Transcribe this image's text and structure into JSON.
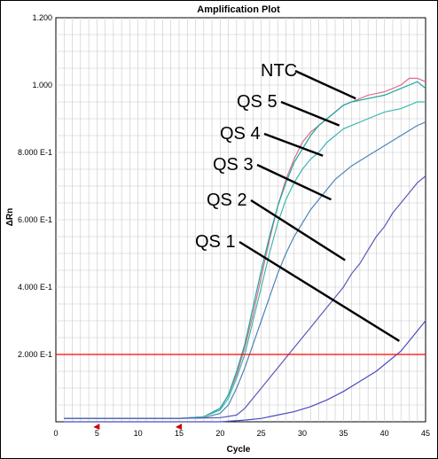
{
  "chart_data": {
    "type": "line",
    "title": "Amplification Plot",
    "xlabel": "Cycle",
    "ylabel": "ΔRn",
    "xlim": [
      0,
      45
    ],
    "ylim": [
      0,
      1.2
    ],
    "x_ticks": [
      0,
      5,
      10,
      15,
      20,
      25,
      30,
      35,
      40,
      45
    ],
    "y_ticks": [
      {
        "value": 0.2,
        "label": "2.000 E-1"
      },
      {
        "value": 0.4,
        "label": "4.000 E-1"
      },
      {
        "value": 0.6,
        "label": "6.000 E-1"
      },
      {
        "value": 0.8,
        "label": "8.000 E-1"
      },
      {
        "value": 1.0,
        "label": "1.000"
      },
      {
        "value": 1.2,
        "label": "1.200"
      }
    ],
    "grid": true,
    "threshold": {
      "value": 0.2,
      "color": "#ff0000"
    },
    "baseline_markers": [
      5,
      15
    ],
    "series": [
      {
        "name": "NTC",
        "color": "#e06a8a",
        "points": [
          [
            1,
            0.01
          ],
          [
            5,
            0.01
          ],
          [
            10,
            0.01
          ],
          [
            15,
            0.01
          ],
          [
            18,
            0.015
          ],
          [
            20,
            0.04
          ],
          [
            21,
            0.08
          ],
          [
            22,
            0.14
          ],
          [
            23,
            0.22
          ],
          [
            24,
            0.32
          ],
          [
            25,
            0.43
          ],
          [
            26,
            0.54
          ],
          [
            27,
            0.64
          ],
          [
            28,
            0.72
          ],
          [
            29,
            0.78
          ],
          [
            30,
            0.83
          ],
          [
            31,
            0.86
          ],
          [
            32,
            0.88
          ],
          [
            33,
            0.9
          ],
          [
            34,
            0.92
          ],
          [
            35,
            0.94
          ],
          [
            36,
            0.95
          ],
          [
            38,
            0.97
          ],
          [
            40,
            0.98
          ],
          [
            42,
            1.0
          ],
          [
            43,
            1.02
          ],
          [
            44,
            1.02
          ],
          [
            45,
            1.01
          ]
        ]
      },
      {
        "name": "QS 5",
        "color": "#19a8a0",
        "points": [
          [
            1,
            0.01
          ],
          [
            5,
            0.01
          ],
          [
            10,
            0.01
          ],
          [
            15,
            0.01
          ],
          [
            18,
            0.015
          ],
          [
            20,
            0.04
          ],
          [
            21,
            0.08
          ],
          [
            22,
            0.15
          ],
          [
            23,
            0.23
          ],
          [
            24,
            0.34
          ],
          [
            25,
            0.45
          ],
          [
            26,
            0.55
          ],
          [
            27,
            0.64
          ],
          [
            28,
            0.71
          ],
          [
            29,
            0.77
          ],
          [
            30,
            0.81
          ],
          [
            31,
            0.85
          ],
          [
            32,
            0.88
          ],
          [
            33,
            0.9
          ],
          [
            34,
            0.92
          ],
          [
            35,
            0.94
          ],
          [
            36,
            0.95
          ],
          [
            38,
            0.96
          ],
          [
            40,
            0.97
          ],
          [
            42,
            0.99
          ],
          [
            43,
            1.0
          ],
          [
            44,
            1.01
          ],
          [
            45,
            0.99
          ]
        ]
      },
      {
        "name": "QS 4",
        "color": "#3cb8b0",
        "points": [
          [
            1,
            0.01
          ],
          [
            5,
            0.01
          ],
          [
            10,
            0.01
          ],
          [
            15,
            0.01
          ],
          [
            18,
            0.015
          ],
          [
            20,
            0.035
          ],
          [
            21,
            0.07
          ],
          [
            22,
            0.13
          ],
          [
            23,
            0.2
          ],
          [
            24,
            0.3
          ],
          [
            25,
            0.4
          ],
          [
            26,
            0.5
          ],
          [
            27,
            0.59
          ],
          [
            28,
            0.66
          ],
          [
            29,
            0.71
          ],
          [
            30,
            0.75
          ],
          [
            31,
            0.78
          ],
          [
            32,
            0.8
          ],
          [
            33,
            0.83
          ],
          [
            34,
            0.85
          ],
          [
            35,
            0.87
          ],
          [
            36,
            0.88
          ],
          [
            38,
            0.9
          ],
          [
            40,
            0.92
          ],
          [
            42,
            0.93
          ],
          [
            44,
            0.95
          ],
          [
            45,
            0.95
          ]
        ]
      },
      {
        "name": "QS 3",
        "color": "#4a84b8",
        "points": [
          [
            1,
            0.01
          ],
          [
            5,
            0.01
          ],
          [
            10,
            0.01
          ],
          [
            15,
            0.01
          ],
          [
            18,
            0.012
          ],
          [
            20,
            0.025
          ],
          [
            21,
            0.05
          ],
          [
            22,
            0.1
          ],
          [
            23,
            0.16
          ],
          [
            24,
            0.23
          ],
          [
            25,
            0.3
          ],
          [
            26,
            0.37
          ],
          [
            27,
            0.44
          ],
          [
            28,
            0.5
          ],
          [
            29,
            0.55
          ],
          [
            30,
            0.59
          ],
          [
            31,
            0.63
          ],
          [
            32,
            0.66
          ],
          [
            33,
            0.69
          ],
          [
            34,
            0.72
          ],
          [
            35,
            0.74
          ],
          [
            36,
            0.76
          ],
          [
            38,
            0.79
          ],
          [
            40,
            0.82
          ],
          [
            42,
            0.85
          ],
          [
            44,
            0.88
          ],
          [
            45,
            0.89
          ]
        ]
      },
      {
        "name": "QS 2",
        "color": "#5a5ab8",
        "points": [
          [
            1,
            0.01
          ],
          [
            10,
            0.01
          ],
          [
            15,
            0.01
          ],
          [
            20,
            0.012
          ],
          [
            22,
            0.02
          ],
          [
            23,
            0.04
          ],
          [
            24,
            0.07
          ],
          [
            25,
            0.1
          ],
          [
            26,
            0.13
          ],
          [
            27,
            0.16
          ],
          [
            28,
            0.19
          ],
          [
            29,
            0.22
          ],
          [
            30,
            0.25
          ],
          [
            31,
            0.28
          ],
          [
            32,
            0.31
          ],
          [
            33,
            0.34
          ],
          [
            34,
            0.37
          ],
          [
            35,
            0.4
          ],
          [
            36,
            0.44
          ],
          [
            37,
            0.47
          ],
          [
            38,
            0.51
          ],
          [
            39,
            0.55
          ],
          [
            40,
            0.58
          ],
          [
            41,
            0.62
          ],
          [
            42,
            0.65
          ],
          [
            43,
            0.68
          ],
          [
            44,
            0.71
          ],
          [
            45,
            0.73
          ]
        ]
      },
      {
        "name": "QS 1",
        "color": "#4a4ac0",
        "points": [
          [
            1,
            0.0
          ],
          [
            10,
            0.0
          ],
          [
            20,
            0.0
          ],
          [
            23,
            0.005
          ],
          [
            25,
            0.01
          ],
          [
            27,
            0.02
          ],
          [
            29,
            0.03
          ],
          [
            31,
            0.045
          ],
          [
            33,
            0.065
          ],
          [
            35,
            0.09
          ],
          [
            37,
            0.12
          ],
          [
            39,
            0.15
          ],
          [
            40,
            0.17
          ],
          [
            41,
            0.19
          ],
          [
            42,
            0.21
          ],
          [
            43,
            0.24
          ],
          [
            44,
            0.27
          ],
          [
            45,
            0.3
          ]
        ]
      }
    ],
    "annotations": [
      {
        "text": "NTC",
        "target": [
          36.5,
          0.96
        ]
      },
      {
        "text": "QS 5",
        "target": [
          34.5,
          0.88
        ]
      },
      {
        "text": "QS 4",
        "target": [
          32.5,
          0.79
        ]
      },
      {
        "text": "QS 3",
        "target": [
          33.5,
          0.66
        ]
      },
      {
        "text": "QS 2",
        "target": [
          35.2,
          0.48
        ]
      },
      {
        "text": "QS 1",
        "target": [
          41.8,
          0.24
        ]
      }
    ]
  }
}
